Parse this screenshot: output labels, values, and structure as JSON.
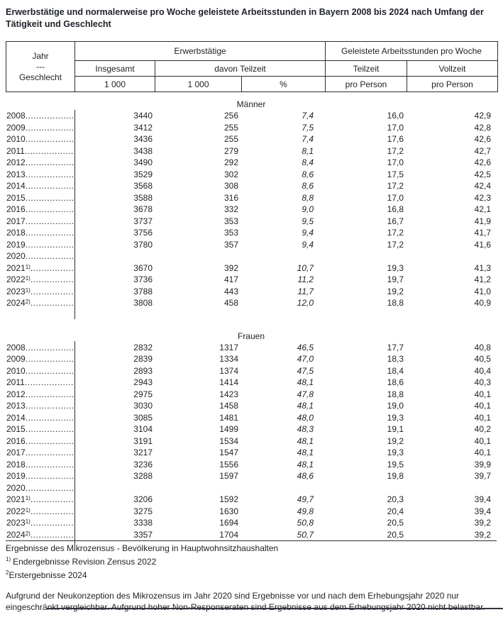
{
  "title": "Erwerbstätige und normalerweise pro Woche geleistete Arbeitsstunden in Bayern 2008 bis 2024 nach Umfang der Tätigkeit und Geschlecht",
  "header": {
    "jahr_lines": [
      "Jahr",
      "---",
      "Geschlecht"
    ],
    "erwerbstaetige": "Erwerbstätige",
    "arbeitsstunden": "Geleistete Arbeitsstunden pro Woche",
    "insgesamt": "Insgesamt",
    "davon_teilzeit": "davon Teilzeit",
    "teilzeit": "Teilzeit",
    "vollzeit": "Vollzeit",
    "unit_insgesamt": "1 000",
    "unit_teilzeit": "1 000",
    "unit_percent": "%",
    "unit_pro_person_teilzeit": "pro Person",
    "unit_pro_person_vollzeit": "pro Person"
  },
  "leader": "....................",
  "sections": [
    {
      "label": "Männer",
      "rows": [
        {
          "year": "2008",
          "sup": "",
          "insgesamt": "3440",
          "teilzeit_1000": "256",
          "teilzeit_pct": "7,4",
          "std_teilzeit": "16,0",
          "std_vollzeit": "42,9"
        },
        {
          "year": "2009",
          "sup": "",
          "insgesamt": "3412",
          "teilzeit_1000": "255",
          "teilzeit_pct": "7,5",
          "std_teilzeit": "17,0",
          "std_vollzeit": "42,8"
        },
        {
          "year": "2010",
          "sup": "",
          "insgesamt": "3436",
          "teilzeit_1000": "255",
          "teilzeit_pct": "7,4",
          "std_teilzeit": "17,6",
          "std_vollzeit": "42,6"
        },
        {
          "year": "2011",
          "sup": "",
          "insgesamt": "3438",
          "teilzeit_1000": "279",
          "teilzeit_pct": "8,1",
          "std_teilzeit": "17,2",
          "std_vollzeit": "42,7"
        },
        {
          "year": "2012",
          "sup": "",
          "insgesamt": "3490",
          "teilzeit_1000": "292",
          "teilzeit_pct": "8,4",
          "std_teilzeit": "17,0",
          "std_vollzeit": "42,6"
        },
        {
          "year": "2013",
          "sup": "",
          "insgesamt": "3529",
          "teilzeit_1000": "302",
          "teilzeit_pct": "8,6",
          "std_teilzeit": "17,5",
          "std_vollzeit": "42,5"
        },
        {
          "year": "2014",
          "sup": "",
          "insgesamt": "3568",
          "teilzeit_1000": "308",
          "teilzeit_pct": "8,6",
          "std_teilzeit": "17,2",
          "std_vollzeit": "42,4"
        },
        {
          "year": "2015",
          "sup": "",
          "insgesamt": "3588",
          "teilzeit_1000": "316",
          "teilzeit_pct": "8,8",
          "std_teilzeit": "17,0",
          "std_vollzeit": "42,3"
        },
        {
          "year": "2016",
          "sup": "",
          "insgesamt": "3678",
          "teilzeit_1000": "332",
          "teilzeit_pct": "9,0",
          "std_teilzeit": "16,8",
          "std_vollzeit": "42,1"
        },
        {
          "year": "2017",
          "sup": "",
          "insgesamt": "3737",
          "teilzeit_1000": "353",
          "teilzeit_pct": "9,5",
          "std_teilzeit": "16,7",
          "std_vollzeit": "41,9"
        },
        {
          "year": "2018",
          "sup": "",
          "insgesamt": "3756",
          "teilzeit_1000": "353",
          "teilzeit_pct": "9,4",
          "std_teilzeit": "17,2",
          "std_vollzeit": "41,7"
        },
        {
          "year": "2019",
          "sup": "",
          "insgesamt": "3780",
          "teilzeit_1000": "357",
          "teilzeit_pct": "9,4",
          "std_teilzeit": "17,2",
          "std_vollzeit": "41,6"
        },
        {
          "year": "2020",
          "sup": "",
          "insgesamt": "",
          "teilzeit_1000": "",
          "teilzeit_pct": "",
          "std_teilzeit": "",
          "std_vollzeit": ""
        },
        {
          "year": "2021",
          "sup": "1)",
          "insgesamt": "3670",
          "teilzeit_1000": "392",
          "teilzeit_pct": "10,7",
          "std_teilzeit": "19,3",
          "std_vollzeit": "41,3"
        },
        {
          "year": "2022",
          "sup": "1)",
          "insgesamt": "3736",
          "teilzeit_1000": "417",
          "teilzeit_pct": "11,2",
          "std_teilzeit": "19,7",
          "std_vollzeit": "41,2"
        },
        {
          "year": "2023",
          "sup": "1)",
          "insgesamt": "3788",
          "teilzeit_1000": "443",
          "teilzeit_pct": "11,7",
          "std_teilzeit": "19,2",
          "std_vollzeit": "41,0"
        },
        {
          "year": "2024",
          "sup": "2)",
          "insgesamt": "3808",
          "teilzeit_1000": "458",
          "teilzeit_pct": "12,0",
          "std_teilzeit": "18,8",
          "std_vollzeit": "40,9"
        }
      ]
    },
    {
      "label": "Frauen",
      "rows": [
        {
          "year": "2008",
          "sup": "",
          "insgesamt": "2832",
          "teilzeit_1000": "1317",
          "teilzeit_pct": "46,5",
          "std_teilzeit": "17,7",
          "std_vollzeit": "40,8"
        },
        {
          "year": "2009",
          "sup": "",
          "insgesamt": "2839",
          "teilzeit_1000": "1334",
          "teilzeit_pct": "47,0",
          "std_teilzeit": "18,3",
          "std_vollzeit": "40,5"
        },
        {
          "year": "2010",
          "sup": "",
          "insgesamt": "2893",
          "teilzeit_1000": "1374",
          "teilzeit_pct": "47,5",
          "std_teilzeit": "18,4",
          "std_vollzeit": "40,4"
        },
        {
          "year": "2011",
          "sup": "",
          "insgesamt": "2943",
          "teilzeit_1000": "1414",
          "teilzeit_pct": "48,1",
          "std_teilzeit": "18,6",
          "std_vollzeit": "40,3"
        },
        {
          "year": "2012",
          "sup": "",
          "insgesamt": "2975",
          "teilzeit_1000": "1423",
          "teilzeit_pct": "47,8",
          "std_teilzeit": "18,8",
          "std_vollzeit": "40,1"
        },
        {
          "year": "2013",
          "sup": "",
          "insgesamt": "3030",
          "teilzeit_1000": "1458",
          "teilzeit_pct": "48,1",
          "std_teilzeit": "19,0",
          "std_vollzeit": "40,1"
        },
        {
          "year": "2014",
          "sup": "",
          "insgesamt": "3085",
          "teilzeit_1000": "1481",
          "teilzeit_pct": "48,0",
          "std_teilzeit": "19,3",
          "std_vollzeit": "40,1"
        },
        {
          "year": "2015",
          "sup": "",
          "insgesamt": "3104",
          "teilzeit_1000": "1499",
          "teilzeit_pct": "48,3",
          "std_teilzeit": "19,1",
          "std_vollzeit": "40,2"
        },
        {
          "year": "2016",
          "sup": "",
          "insgesamt": "3191",
          "teilzeit_1000": "1534",
          "teilzeit_pct": "48,1",
          "std_teilzeit": "19,2",
          "std_vollzeit": "40,1"
        },
        {
          "year": "2017",
          "sup": "",
          "insgesamt": "3217",
          "teilzeit_1000": "1547",
          "teilzeit_pct": "48,1",
          "std_teilzeit": "19,3",
          "std_vollzeit": "40,1"
        },
        {
          "year": "2018",
          "sup": "",
          "insgesamt": "3236",
          "teilzeit_1000": "1556",
          "teilzeit_pct": "48,1",
          "std_teilzeit": "19,5",
          "std_vollzeit": "39,9"
        },
        {
          "year": "2019",
          "sup": "",
          "insgesamt": "3288",
          "teilzeit_1000": "1597",
          "teilzeit_pct": "48,6",
          "std_teilzeit": "19,8",
          "std_vollzeit": "39,7"
        },
        {
          "year": "2020",
          "sup": "",
          "insgesamt": "",
          "teilzeit_1000": "",
          "teilzeit_pct": "",
          "std_teilzeit": "",
          "std_vollzeit": ""
        },
        {
          "year": "2021",
          "sup": "1)",
          "insgesamt": "3206",
          "teilzeit_1000": "1592",
          "teilzeit_pct": "49,7",
          "std_teilzeit": "20,3",
          "std_vollzeit": "39,4"
        },
        {
          "year": "2022",
          "sup": "1)",
          "insgesamt": "3275",
          "teilzeit_1000": "1630",
          "teilzeit_pct": "49,8",
          "std_teilzeit": "20,4",
          "std_vollzeit": "39,4"
        },
        {
          "year": "2023",
          "sup": "1)",
          "insgesamt": "3338",
          "teilzeit_1000": "1694",
          "teilzeit_pct": "50,8",
          "std_teilzeit": "20,5",
          "std_vollzeit": "39,2"
        },
        {
          "year": "2024",
          "sup": "2)",
          "insgesamt": "3357",
          "teilzeit_1000": "1704",
          "teilzeit_pct": "50,7",
          "std_teilzeit": "20,5",
          "std_vollzeit": "39,2"
        }
      ]
    }
  ],
  "footnotes": {
    "source": "Ergebnisse des Mikrozensus - Bevölkerung in Hauptwohnsitzhaushalten",
    "fn1_marker": "1)",
    "fn1_text": "Endergebnisse Revision Zensus 2022",
    "fn2_marker": "2",
    "fn2_text": "Erstergebnisse 2024",
    "note": "Aufgrund der Neukonzeption des Mikrozensus im Jahr 2020 sind Ergebnisse vor und nach dem Erhebungsjahr 2020 nur eingeschränkt vergleichbar. Aufgrund hoher Non-Responseraten sind Ergebnisse aus dem Erhebungsjahr 2020 nicht belastbar."
  }
}
